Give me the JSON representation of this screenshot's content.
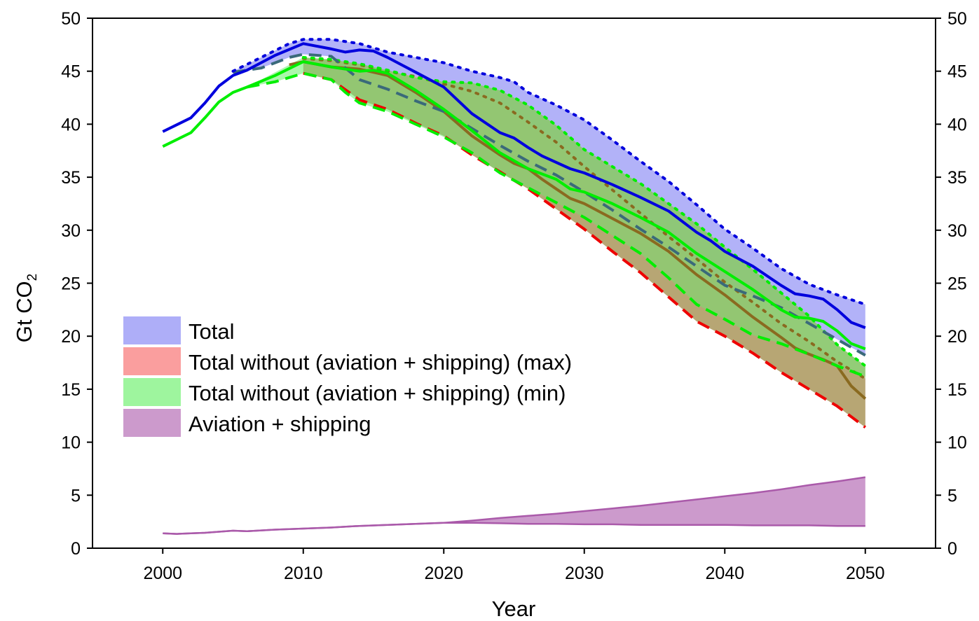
{
  "chart_data": {
    "type": "area",
    "xlabel": "Year",
    "ylabel": "Gt CO",
    "ylabel_subscript": "2",
    "xlim": [
      1995,
      2055
    ],
    "ylim": [
      0,
      50
    ],
    "x_ticks": [
      2000,
      2010,
      2020,
      2030,
      2040,
      2050
    ],
    "y_ticks": [
      0,
      5,
      10,
      15,
      20,
      25,
      30,
      35,
      40,
      45,
      50
    ],
    "right_axis_ticks": [
      0,
      5,
      10,
      15,
      20,
      25,
      30,
      35,
      40,
      45,
      50
    ],
    "grid": false,
    "legend_position": "left-center",
    "legend": [
      {
        "label": "Total",
        "color": "#aeaef8"
      },
      {
        "label": "Total without (aviation + shipping) (max)",
        "color": "#fa9e9e"
      },
      {
        "label": "Total without (aviation + shipping) (min)",
        "color": "#9ef59e"
      },
      {
        "label": "Aviation + shipping",
        "color": "#cc9acc"
      }
    ],
    "colors": {
      "total_line": "#0000dd",
      "max_line": "#ee0000",
      "min_line": "#00ee00",
      "overlap_line": "#8a6a20",
      "overlap_fill": "#7faa4f",
      "mixed_line": "#3a6a7a",
      "aviation_line": "#aa5aaa"
    },
    "series": [
      {
        "key": "total_mid",
        "style": "solid",
        "x": [
          2000,
          2002,
          2003,
          2004,
          2005,
          2006,
          2008,
          2010,
          2012,
          2013,
          2014,
          2015,
          2016,
          2017,
          2018,
          2020,
          2022,
          2024,
          2025,
          2026,
          2027,
          2029,
          2030,
          2032,
          2034,
          2036,
          2038,
          2039,
          2040,
          2042,
          2044,
          2045,
          2046,
          2047,
          2048,
          2049,
          2050
        ],
        "y": [
          39.3,
          40.6,
          42.0,
          43.6,
          44.6,
          45.1,
          46.5,
          47.6,
          47.1,
          46.8,
          47.0,
          46.9,
          46.3,
          45.6,
          44.9,
          43.5,
          41.0,
          39.2,
          38.7,
          37.8,
          37.0,
          35.8,
          35.4,
          34.3,
          33.1,
          31.8,
          29.8,
          29.0,
          28.0,
          26.6,
          24.8,
          24.0,
          23.8,
          23.5,
          22.5,
          21.3,
          20.8
        ]
      },
      {
        "key": "total_high",
        "style": "dotted",
        "x": [
          2005,
          2007,
          2009,
          2010,
          2012,
          2014,
          2016,
          2018,
          2020,
          2022,
          2024,
          2025,
          2026,
          2028,
          2030,
          2032,
          2034,
          2036,
          2038,
          2040,
          2042,
          2044,
          2046,
          2048,
          2050
        ],
        "y": [
          45.0,
          46.3,
          47.6,
          48.0,
          48.0,
          47.6,
          46.8,
          46.3,
          45.8,
          45.0,
          44.4,
          44.0,
          43.0,
          41.8,
          40.4,
          38.5,
          36.5,
          34.6,
          32.4,
          30.1,
          28.3,
          26.4,
          24.9,
          23.9,
          23.0
        ]
      },
      {
        "key": "total_low",
        "style": "dashed",
        "x": [
          2005,
          2007,
          2009,
          2010,
          2012,
          2013,
          2014,
          2016,
          2018,
          2020,
          2022,
          2024,
          2026,
          2028,
          2030,
          2032,
          2034,
          2036,
          2038,
          2040,
          2042,
          2044,
          2046,
          2048,
          2050
        ],
        "y": [
          44.9,
          45.3,
          46.3,
          46.6,
          46.4,
          45.3,
          44.2,
          43.3,
          42.2,
          41.2,
          39.6,
          38.0,
          36.5,
          35.2,
          33.6,
          31.9,
          30.1,
          28.4,
          26.6,
          24.8,
          23.8,
          22.7,
          21.2,
          19.7,
          18.2
        ]
      },
      {
        "key": "max_mid",
        "style": "solid",
        "x": [
          2009,
          2010,
          2012,
          2014,
          2016,
          2018,
          2020,
          2022,
          2024,
          2025,
          2026,
          2027,
          2028,
          2029,
          2030,
          2032,
          2034,
          2036,
          2038,
          2040,
          2042,
          2044,
          2045,
          2046,
          2047,
          2048,
          2049,
          2050
        ],
        "y": [
          45.6,
          45.9,
          45.4,
          45.2,
          44.6,
          43.0,
          41.2,
          38.9,
          37.1,
          36.3,
          35.8,
          34.8,
          33.9,
          33.0,
          32.5,
          31.1,
          29.7,
          28.0,
          25.8,
          23.9,
          21.8,
          19.9,
          18.9,
          18.3,
          17.8,
          17.2,
          15.3,
          14.1
        ]
      },
      {
        "key": "max_high",
        "style": "dotted",
        "x": [
          2010,
          2012,
          2014,
          2016,
          2018,
          2020,
          2022,
          2024,
          2026,
          2028,
          2030,
          2032,
          2034,
          2036,
          2038,
          2040,
          2042,
          2044,
          2046,
          2048,
          2050
        ],
        "y": [
          46.2,
          46.0,
          45.6,
          45.0,
          44.5,
          43.8,
          43.1,
          42.0,
          40.2,
          38.3,
          36.0,
          33.8,
          31.6,
          29.4,
          27.3,
          25.1,
          23.2,
          21.2,
          19.5,
          17.6,
          16.0
        ]
      },
      {
        "key": "max_low",
        "style": "dashed",
        "x": [
          2010,
          2012,
          2014,
          2016,
          2018,
          2020,
          2022,
          2024,
          2026,
          2028,
          2030,
          2032,
          2034,
          2036,
          2038,
          2040,
          2042,
          2044,
          2046,
          2048,
          2050
        ],
        "y": [
          44.8,
          44.2,
          42.3,
          41.4,
          40.1,
          38.9,
          37.1,
          35.5,
          33.9,
          32.0,
          30.1,
          28.0,
          26.0,
          23.7,
          21.4,
          20.0,
          18.4,
          16.6,
          15.0,
          13.4,
          11.4
        ]
      },
      {
        "key": "min_mid",
        "style": "solid",
        "x": [
          2000,
          2002,
          2003,
          2004,
          2005,
          2006,
          2008,
          2010,
          2012,
          2014,
          2015,
          2016,
          2018,
          2020,
          2022,
          2024,
          2026,
          2028,
          2029,
          2030,
          2032,
          2034,
          2036,
          2038,
          2040,
          2042,
          2044,
          2045,
          2046,
          2047,
          2048,
          2049,
          2050
        ],
        "y": [
          37.9,
          39.2,
          40.6,
          42.1,
          43.0,
          43.5,
          44.6,
          45.9,
          45.4,
          45.0,
          45.1,
          44.8,
          43.2,
          41.4,
          39.4,
          37.3,
          35.8,
          34.8,
          33.9,
          33.6,
          32.5,
          31.2,
          29.8,
          27.8,
          26.1,
          24.4,
          22.5,
          21.8,
          21.7,
          21.4,
          20.5,
          19.3,
          18.8
        ]
      },
      {
        "key": "min_high",
        "style": "dotted",
        "x": [
          2010,
          2012,
          2014,
          2016,
          2018,
          2020,
          2022,
          2024,
          2026,
          2028,
          2030,
          2032,
          2034,
          2036,
          2038,
          2040,
          2042,
          2044,
          2046,
          2048,
          2050
        ],
        "y": [
          46.3,
          46.1,
          45.7,
          45.1,
          44.4,
          44.0,
          43.9,
          43.2,
          41.8,
          39.9,
          37.6,
          36.0,
          34.4,
          32.5,
          30.6,
          28.4,
          26.3,
          24.1,
          21.9,
          19.2,
          17.2
        ]
      },
      {
        "key": "min_low",
        "style": "dashed",
        "x": [
          2006,
          2008,
          2010,
          2012,
          2013,
          2014,
          2016,
          2018,
          2020,
          2022,
          2024,
          2026,
          2028,
          2030,
          2032,
          2034,
          2036,
          2038,
          2040,
          2042,
          2044,
          2046,
          2048,
          2050
        ],
        "y": [
          43.5,
          44.0,
          44.8,
          44.2,
          43.0,
          42.0,
          41.2,
          40.0,
          38.8,
          37.3,
          35.4,
          34.0,
          32.6,
          31.2,
          29.5,
          27.8,
          25.5,
          23.0,
          21.6,
          20.1,
          19.3,
          18.3,
          17.2,
          16.2
        ]
      },
      {
        "key": "aviation_high",
        "style": "solid",
        "x": [
          2000,
          2001,
          2002,
          2003,
          2004,
          2005,
          2006,
          2008,
          2010,
          2012,
          2014,
          2016,
          2018,
          2020,
          2022,
          2024,
          2026,
          2028,
          2030,
          2032,
          2034,
          2036,
          2038,
          2040,
          2042,
          2044,
          2046,
          2048,
          2050
        ],
        "y": [
          1.4,
          1.35,
          1.4,
          1.45,
          1.55,
          1.65,
          1.6,
          1.75,
          1.85,
          1.95,
          2.1,
          2.2,
          2.3,
          2.4,
          2.6,
          2.85,
          3.05,
          3.25,
          3.5,
          3.75,
          4.0,
          4.3,
          4.6,
          4.9,
          5.2,
          5.55,
          5.95,
          6.3,
          6.7
        ]
      },
      {
        "key": "aviation_low",
        "style": "solid",
        "x": [
          2000,
          2001,
          2002,
          2003,
          2004,
          2005,
          2006,
          2008,
          2010,
          2012,
          2014,
          2016,
          2018,
          2020,
          2022,
          2024,
          2026,
          2028,
          2030,
          2032,
          2034,
          2036,
          2038,
          2040,
          2042,
          2044,
          2046,
          2048,
          2050
        ],
        "y": [
          1.4,
          1.35,
          1.4,
          1.45,
          1.55,
          1.65,
          1.6,
          1.75,
          1.85,
          1.95,
          2.1,
          2.2,
          2.3,
          2.4,
          2.4,
          2.35,
          2.3,
          2.3,
          2.25,
          2.25,
          2.2,
          2.2,
          2.2,
          2.2,
          2.15,
          2.15,
          2.15,
          2.1,
          2.1
        ]
      }
    ]
  }
}
